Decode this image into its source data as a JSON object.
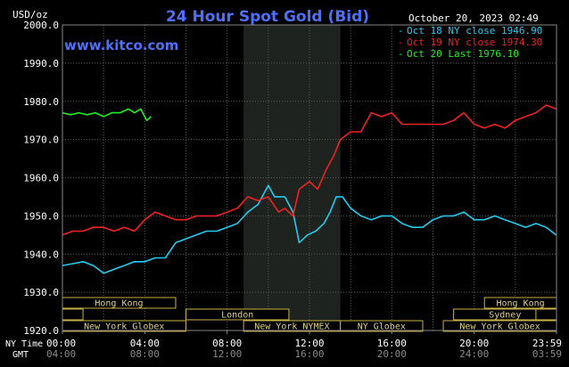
{
  "chart_data": {
    "type": "line",
    "title": "24 Hour Spot Gold (Bid)",
    "brand": "www.kitco.com",
    "timestamp": "October 20, 2023 02:49",
    "y_unit": "USD/oz",
    "ylim": [
      1920,
      2000
    ],
    "y_ticks": [
      "2000.0",
      "1990.0",
      "1980.0",
      "1970.0",
      "1960.0",
      "1950.0",
      "1940.0",
      "1930.0",
      "1920.0"
    ],
    "x_row_ny_label": "NY Time",
    "x_row_gmt_label": "GMT",
    "x_ticks_ny": [
      "00:00",
      "04:00",
      "08:00",
      "12:00",
      "16:00",
      "20:00",
      "23:59"
    ],
    "x_ticks_gmt": [
      "04:00",
      "08:00",
      "12:00",
      "16:00",
      "20:00",
      "24:00",
      "03:59"
    ],
    "grid": true,
    "legend_position": "top-right",
    "sessions": [
      {
        "label": "Hong Kong",
        "start_h": 0,
        "end_h": 5.5
      },
      {
        "label": "London",
        "start_h": 0,
        "end_h": 1
      },
      {
        "label": "London",
        "start_h": 6,
        "end_h": 11
      },
      {
        "label": "New York Globex",
        "start_h": 0,
        "end_h": 6
      },
      {
        "label": "New York NYMEX",
        "start_h": 8.8,
        "end_h": 13.5
      },
      {
        "label": "NY Globex",
        "start_h": 13.5,
        "end_h": 17.5
      },
      {
        "label": "Hong Kong",
        "start_h": 20.5,
        "end_h": 24
      },
      {
        "label": "Sydney",
        "start_h": 19,
        "end_h": 24
      },
      {
        "label": "London",
        "start_h": 23,
        "end_h": 24
      },
      {
        "label": "New York Globex",
        "start_h": 18.5,
        "end_h": 24
      }
    ],
    "shaded_range_h": [
      8.8,
      13.5
    ],
    "series": [
      {
        "name": "Oct 18 NY close 1946.90",
        "color": "#22ccee",
        "x": [
          0,
          0.5,
          1,
          1.5,
          2,
          2.5,
          3,
          3.5,
          4,
          4.5,
          5,
          5.5,
          6,
          6.5,
          7,
          7.5,
          8,
          8.5,
          9,
          9.5,
          10,
          10.3,
          10.8,
          11.2,
          11.5,
          11.9,
          12.3,
          12.7,
          13,
          13.3,
          13.6,
          14,
          14.5,
          15,
          15.5,
          16,
          16.5,
          17,
          17.5,
          18,
          18.5,
          19,
          19.5,
          20,
          20.5,
          21,
          21.5,
          22,
          22.5,
          23,
          23.5,
          23.98
        ],
        "y": [
          1937,
          1937.5,
          1938,
          1937,
          1935,
          1936,
          1937,
          1938,
          1938,
          1939,
          1939,
          1943,
          1944,
          1945,
          1946,
          1946,
          1947,
          1948,
          1951,
          1953,
          1958,
          1955,
          1955,
          1951,
          1943,
          1945,
          1946,
          1948,
          1951,
          1955,
          1955,
          1952,
          1950,
          1949,
          1950,
          1950,
          1948,
          1947,
          1947,
          1949,
          1950,
          1950,
          1951,
          1949,
          1949,
          1950,
          1949,
          1948,
          1947,
          1948,
          1947,
          1945
        ]
      },
      {
        "name": "Oct 19 NY close 1974.30",
        "color": "#ee2222",
        "x": [
          0,
          0.5,
          1,
          1.5,
          2,
          2.5,
          3,
          3.5,
          4,
          4.5,
          5,
          5.5,
          6,
          6.5,
          7,
          7.5,
          8,
          8.5,
          9,
          9.5,
          10,
          10.5,
          10.8,
          11.2,
          11.5,
          12,
          12.4,
          12.8,
          13.2,
          13.5,
          14,
          14.5,
          15,
          15.5,
          16,
          16.5,
          17,
          17.5,
          18,
          18.5,
          19,
          19.5,
          20,
          20.5,
          21,
          21.5,
          22,
          22.5,
          23,
          23.5,
          23.98
        ],
        "y": [
          1945,
          1946,
          1946,
          1947,
          1947,
          1946,
          1947,
          1946,
          1949,
          1951,
          1950,
          1949,
          1949,
          1950,
          1950,
          1950,
          1951,
          1952,
          1955,
          1954,
          1955,
          1951,
          1952,
          1950,
          1957,
          1959,
          1957,
          1962,
          1966,
          1970,
          1972,
          1972,
          1977,
          1976,
          1977,
          1974,
          1974,
          1974,
          1974,
          1974,
          1975,
          1977,
          1974,
          1973,
          1974,
          1973,
          1975,
          1976,
          1977,
          1979,
          1978
        ]
      },
      {
        "name": "Oct 20 Last 1976.10",
        "color": "#22ee22",
        "x": [
          0,
          0.4,
          0.8,
          1.2,
          1.6,
          2.0,
          2.4,
          2.8,
          3.2,
          3.5,
          3.8,
          4.1,
          4.3
        ],
        "y": [
          1977,
          1976.5,
          1977,
          1976.5,
          1977,
          1976,
          1977,
          1977,
          1978,
          1977,
          1978,
          1975,
          1976
        ]
      }
    ]
  }
}
